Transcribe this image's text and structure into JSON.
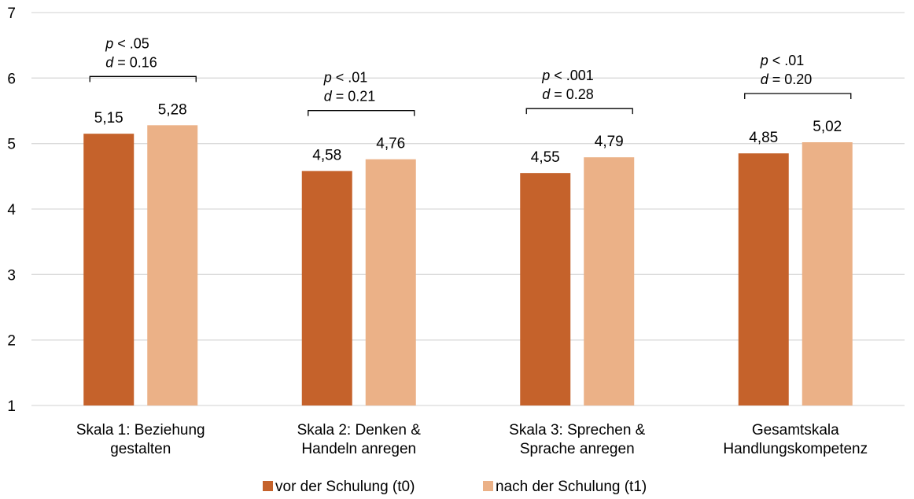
{
  "chart_data": {
    "type": "bar",
    "categories": [
      [
        "Skala 1: Beziehung",
        "gestalten"
      ],
      [
        "Skala 2: Denken &",
        "Handeln anregen"
      ],
      [
        "Skala 3: Sprechen &",
        "Sprache anregen"
      ],
      [
        "Gesamtskala",
        "Handlungskompetenz"
      ]
    ],
    "series": [
      {
        "name": "vor der Schulung (t0)",
        "color": "#c5622b",
        "values": [
          5.15,
          4.58,
          4.55,
          4.85
        ],
        "labels": [
          "5,15",
          "4,58",
          "4,55",
          "4,85"
        ]
      },
      {
        "name": "nach der Schulung (t1)",
        "color": "#ebb187",
        "values": [
          5.28,
          4.76,
          4.79,
          5.02
        ],
        "labels": [
          "5,28",
          "4,76",
          "4,79",
          "5,02"
        ]
      }
    ],
    "ylim": [
      1,
      7
    ],
    "yticks": [
      "1",
      "2",
      "3",
      "4",
      "5",
      "6",
      "7"
    ],
    "grid": true,
    "legend_position": "bottom",
    "annotations": [
      {
        "p_sym": "p",
        "p_rest": " < .05",
        "d_sym": "d",
        "d_rest": " = 0.16"
      },
      {
        "p_sym": "p",
        "p_rest": " < .01",
        "d_sym": "d",
        "d_rest": " = 0.21"
      },
      {
        "p_sym": "p",
        "p_rest": " < .001",
        "d_sym": "d",
        "d_rest": " = 0.28"
      },
      {
        "p_sym": "p",
        "p_rest": " < .01",
        "d_sym": "d",
        "d_rest": " = 0.20"
      }
    ],
    "xlabel": "",
    "ylabel": ""
  }
}
